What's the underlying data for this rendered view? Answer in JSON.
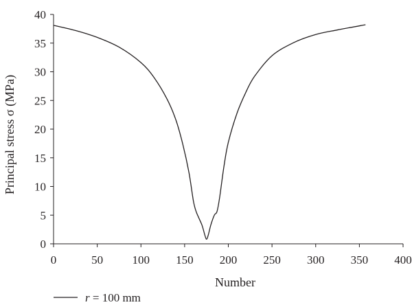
{
  "chart_data": {
    "type": "line",
    "title": "",
    "xlabel": "Number",
    "ylabel": "Principal stress σ (MPa)",
    "xlim": [
      0,
      400
    ],
    "ylim": [
      0,
      40
    ],
    "xticks": [
      0,
      50,
      100,
      150,
      200,
      250,
      300,
      350,
      400
    ],
    "yticks": [
      0,
      5,
      10,
      15,
      20,
      25,
      30,
      35,
      40
    ],
    "grid": false,
    "legend_position": "bottom-left",
    "series": [
      {
        "name": "r = 100 mm",
        "name_parts": {
          "italic": "r",
          "rest": " = 100 mm"
        },
        "color": "#231f20",
        "x": [
          0,
          25,
          50,
          75,
          100,
          115,
          130,
          140,
          148,
          155,
          160,
          163,
          166,
          170,
          173,
          175,
          177,
          180,
          184,
          187,
          190,
          195,
          200,
          210,
          220,
          230,
          250,
          275,
          300,
          325,
          357
        ],
        "y": [
          38.1,
          37.2,
          36.0,
          34.3,
          31.6,
          29.0,
          25.2,
          21.6,
          17.3,
          12.4,
          7.5,
          5.7,
          4.6,
          3.2,
          1.6,
          0.8,
          1.5,
          3.3,
          5.0,
          5.6,
          8.0,
          13.5,
          17.7,
          22.8,
          26.4,
          29.2,
          32.8,
          35.1,
          36.5,
          37.3,
          38.2
        ]
      }
    ]
  }
}
